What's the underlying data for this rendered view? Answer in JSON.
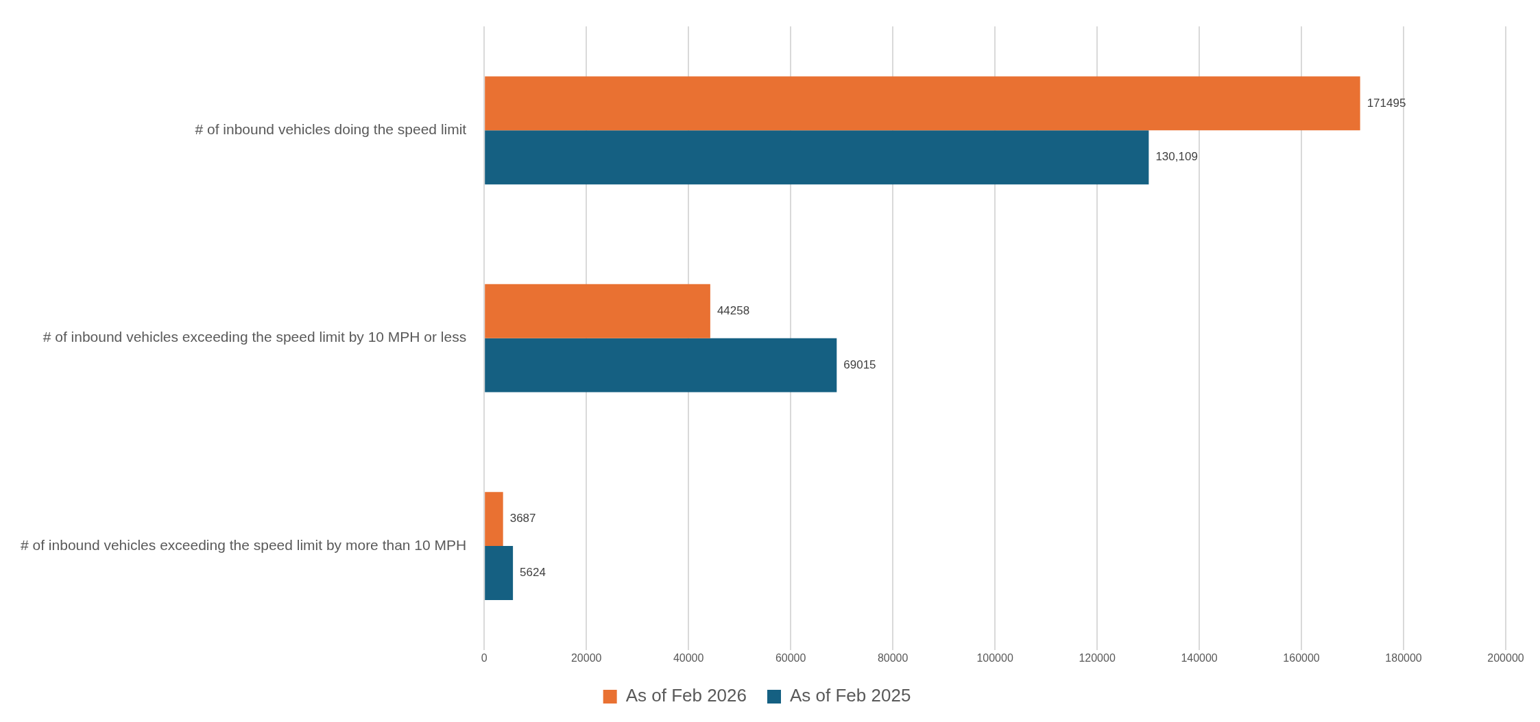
{
  "chart_data": {
    "type": "bar",
    "orientation": "horizontal",
    "categories": [
      "# of inbound vehicles doing the speed limit",
      "# of inbound vehicles exceeding the speed limit by 10 MPH or less",
      "# of inbound vehicles exceeding the speed limit by more than 10 MPH"
    ],
    "series": [
      {
        "name": "As of Feb 2026",
        "color": "#e97132",
        "values": [
          171495,
          44258,
          3687
        ],
        "value_labels": [
          "171495",
          "44258",
          "3687"
        ]
      },
      {
        "name": "As of Feb 2025",
        "color": "#156082",
        "values": [
          130109,
          69015,
          5624
        ],
        "value_labels": [
          "130,109",
          "69015",
          "5624"
        ]
      }
    ],
    "xlim": [
      0,
      200000
    ],
    "xticks": [
      0,
      20000,
      40000,
      60000,
      80000,
      100000,
      120000,
      140000,
      160000,
      180000,
      200000
    ],
    "grid": "x",
    "legend": "bottom"
  }
}
